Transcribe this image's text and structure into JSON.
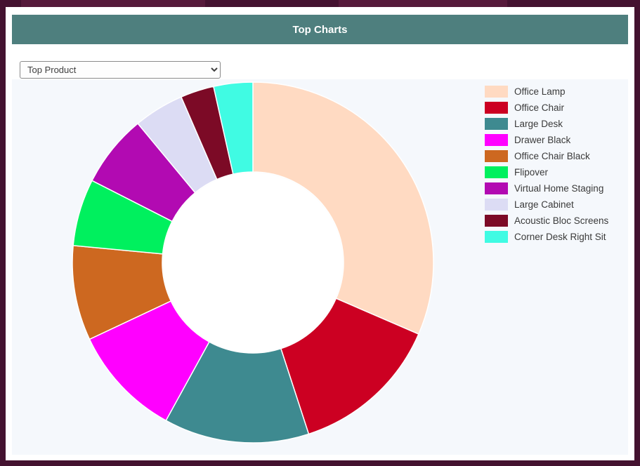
{
  "header": {
    "title": "Top Charts"
  },
  "filter": {
    "selected_option": "Top Product"
  },
  "theme": {
    "frame_bg": "#441230",
    "header_bg": "#4e7f7e",
    "chart_bg": "#f5f8fc",
    "hole_bg": "#ffffff"
  },
  "chart_data": {
    "type": "pie",
    "subtype": "doughnut",
    "title": "Top Charts",
    "legend_position": "right",
    "inner_radius_ratio": 0.5,
    "unit": "% share (estimated from arc angles)",
    "labels": [
      "Office Lamp",
      "Office Chair",
      "Large Desk",
      "Drawer Black",
      "Office Chair Black",
      "Flipover",
      "Virtual Home Staging",
      "Large Cabinet",
      "Acoustic Bloc Screens",
      "Corner Desk Right Sit"
    ],
    "values": [
      31.5,
      13.5,
      13,
      10,
      8.5,
      6,
      6.5,
      4.5,
      3,
      3.5
    ],
    "colors": [
      "#FFDAC2",
      "#CC0022",
      "#3E8A90",
      "#FF00FF",
      "#CD6820",
      "#00F05E",
      "#B20AB2",
      "#DCDCF4",
      "#7C0A26",
      "#40FBE3"
    ]
  }
}
